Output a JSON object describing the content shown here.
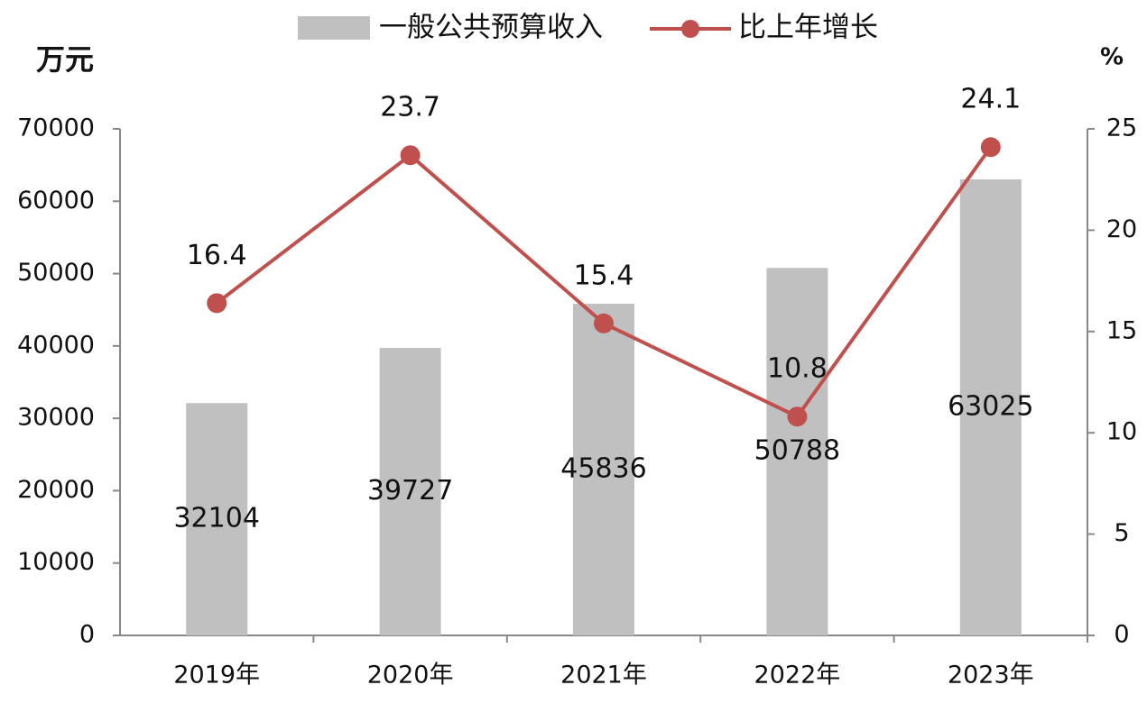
{
  "chart_data": {
    "type": "bar",
    "y_label": "万元",
    "y2_label": "%",
    "categories": [
      "2019年",
      "2020年",
      "2021年",
      "2022年",
      "2023年"
    ],
    "series": [
      {
        "name": "一般公共预算收入",
        "type": "bar",
        "color": "#c0c0c0",
        "values": [
          32104,
          39727,
          45836,
          50788,
          63025
        ]
      },
      {
        "name": "比上年增长",
        "type": "line",
        "axis": "y2",
        "color": "#c0504d",
        "values": [
          16.4,
          23.7,
          15.4,
          10.8,
          24.1
        ]
      }
    ],
    "ylim": [
      0,
      70000
    ],
    "yticks": [
      0,
      10000,
      20000,
      30000,
      40000,
      50000,
      60000,
      70000
    ],
    "y2lim": [
      0,
      25
    ],
    "y2ticks": [
      0,
      5,
      10,
      15,
      20,
      25
    ],
    "grid": false,
    "legend": "top"
  }
}
